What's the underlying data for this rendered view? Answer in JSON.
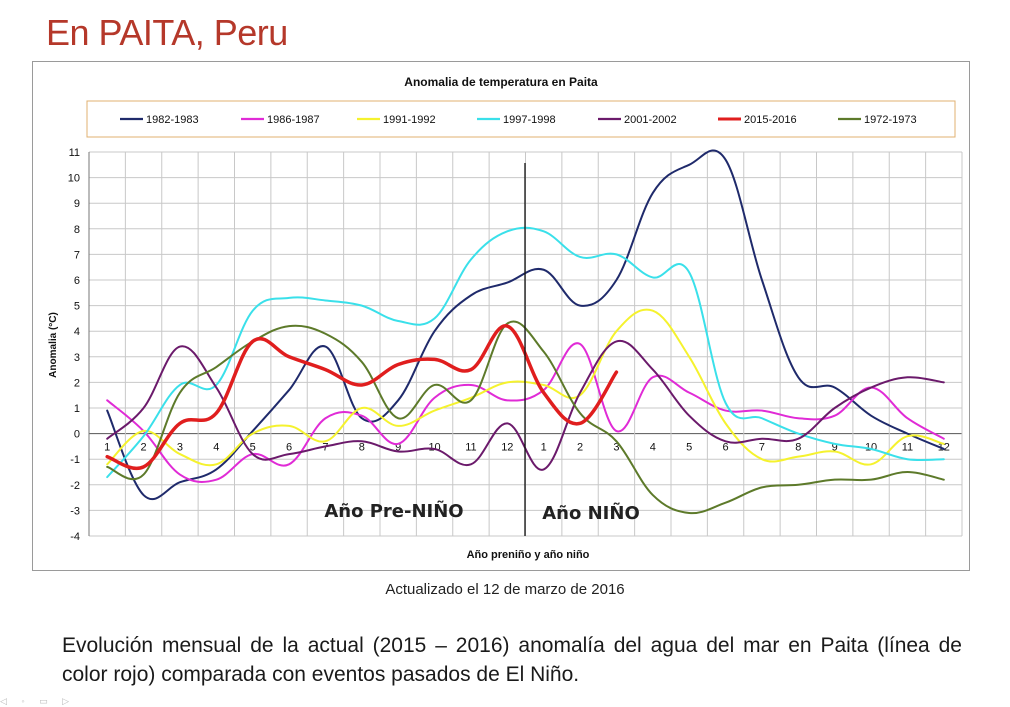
{
  "slide": {
    "title": "En PAITA, Peru",
    "updated": "Actualizado el 12 de marzo de 2016",
    "description": "Evolución mensual de la actual (2015 – 2016) anomalía del agua del mar en Paita (línea de color rojo) comparada con eventos pasados de El Niño."
  },
  "chart_data": {
    "type": "line",
    "title": "Anomalia de temperatura en Paita",
    "xlabel": "Año preniño y año niño",
    "ylabel": "Anomalia (°C)",
    "ylim": [
      -4,
      11
    ],
    "yticks": [
      "11",
      "10",
      "9",
      "8",
      "7",
      "6",
      "5",
      "4",
      "3",
      "2",
      "1",
      "0",
      "-1",
      "-2",
      "-3",
      "-4"
    ],
    "categories": [
      "1",
      "2",
      "3",
      "4",
      "5",
      "6",
      "7",
      "8",
      "9",
      "10",
      "11",
      "12",
      "1",
      "2",
      "3",
      "4",
      "5",
      "6",
      "7",
      "8",
      "9",
      "10",
      "11",
      "12"
    ],
    "annotations": {
      "pre": "Año Pre-NIÑO",
      "nino": "Año NIÑO"
    },
    "series": [
      {
        "name": "1982-1983",
        "color": "#1f2a6b",
        "width": 2,
        "values": [
          0.9,
          -2.4,
          -1.9,
          -1.4,
          0.1,
          1.7,
          3.4,
          0.6,
          1.3,
          4.0,
          5.4,
          5.9,
          6.4,
          5.0,
          6.0,
          9.4,
          10.5,
          10.7,
          6.0,
          2.2,
          1.8,
          0.7,
          0.0,
          -0.6
        ]
      },
      {
        "name": "1986-1987",
        "color": "#e02bd6",
        "width": 2,
        "values": [
          1.3,
          0.1,
          -1.6,
          -1.8,
          -0.8,
          -1.2,
          0.6,
          0.7,
          -0.4,
          1.4,
          1.9,
          1.3,
          1.7,
          3.5,
          0.1,
          2.2,
          1.6,
          0.9,
          0.9,
          0.6,
          0.7,
          1.8,
          0.6,
          -0.2
        ]
      },
      {
        "name": "1991-1992",
        "color": "#f5f22e",
        "width": 2,
        "values": [
          -1.2,
          0.1,
          -0.8,
          -1.2,
          0.0,
          0.3,
          -0.3,
          1.0,
          0.3,
          0.9,
          1.4,
          2.0,
          1.9,
          1.5,
          4.0,
          4.8,
          3.0,
          0.4,
          -1.0,
          -0.9,
          -0.7,
          -1.2,
          -0.1,
          -0.4
        ]
      },
      {
        "name": "1997-1998",
        "color": "#3ae0ea",
        "width": 2,
        "values": [
          -1.7,
          -0.1,
          1.9,
          1.9,
          4.8,
          5.3,
          5.2,
          5.0,
          4.4,
          4.5,
          6.8,
          7.9,
          7.9,
          6.9,
          7.0,
          6.1,
          6.3,
          1.2,
          0.6,
          0.0,
          -0.4,
          -0.6,
          -1.0,
          -1.0
        ]
      },
      {
        "name": "2001-2002",
        "color": "#6b1a6b",
        "width": 2,
        "values": [
          -0.2,
          1.0,
          3.4,
          1.8,
          -0.8,
          -0.8,
          -0.5,
          -0.3,
          -0.7,
          -0.6,
          -1.2,
          0.4,
          -1.4,
          1.6,
          3.6,
          2.5,
          0.7,
          -0.3,
          -0.2,
          -0.2,
          1.0,
          1.8,
          2.2,
          2.0
        ]
      },
      {
        "name": "2015-2016",
        "color": "#e01e1e",
        "width": 3.5,
        "values": [
          -0.9,
          -1.3,
          0.4,
          0.8,
          3.6,
          3.0,
          2.5,
          1.9,
          2.7,
          2.9,
          2.5,
          4.2,
          1.6,
          0.4,
          2.4,
          null,
          null,
          null,
          null,
          null,
          null,
          null,
          null,
          null
        ]
      },
      {
        "name": "1972-1973",
        "color": "#5d7a2a",
        "width": 2,
        "values": [
          -1.3,
          -1.6,
          1.6,
          2.6,
          3.6,
          4.2,
          3.9,
          2.8,
          0.6,
          1.9,
          1.3,
          4.3,
          3.2,
          0.8,
          -0.3,
          -2.4,
          -3.1,
          -2.7,
          -2.1,
          -2.0,
          -1.8,
          -1.8,
          -1.5,
          -1.8
        ]
      }
    ]
  }
}
